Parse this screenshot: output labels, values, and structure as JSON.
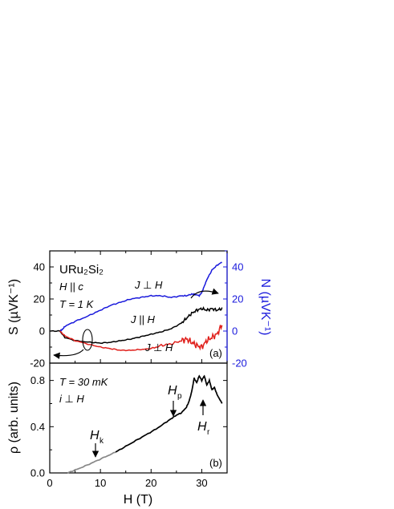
{
  "chart_data": [
    {
      "panel_label": "(a)",
      "type": "line",
      "ylabel": "S (µVK⁻¹)",
      "ylabel_right": "N (µVK⁻¹)",
      "xlim": [
        0,
        35
      ],
      "ylim": [
        -20,
        50
      ],
      "ylim_right": [
        -20,
        50
      ],
      "y_ticks": [
        -20,
        0,
        20,
        40
      ],
      "y_ticks_right": [
        -20,
        0,
        20,
        40
      ],
      "annotations": {
        "compound": "URu₂Si₂",
        "field_dir": "H || c",
        "temperature": "T = 1 K",
        "label_perp_top": "J ⊥ H",
        "label_par": "J || H",
        "label_perp_bottom": "J ⊥ H"
      },
      "series": [
        {
          "color": "#1a1adc",
          "axis": "right",
          "x": [
            2,
            2.5,
            3,
            5,
            8,
            10,
            12,
            14,
            16,
            18,
            20,
            22,
            24,
            26,
            27,
            28,
            28.5,
            29.5,
            30,
            30.5,
            31,
            32,
            33,
            34
          ],
          "y": [
            0,
            1,
            3,
            6,
            10,
            13,
            16,
            18,
            20,
            21,
            22,
            22,
            21,
            22,
            22,
            23,
            23,
            22,
            24,
            28,
            32,
            38,
            41,
            43
          ]
        },
        {
          "color": "#000000",
          "axis": "left",
          "x": [
            0,
            2,
            3,
            5,
            8,
            10,
            12,
            14,
            16,
            18,
            20,
            22,
            24,
            26,
            27,
            28,
            29,
            30,
            31,
            32,
            33,
            34
          ],
          "y": [
            0,
            0,
            -4,
            -6,
            -7,
            -7.5,
            -7,
            -6,
            -5,
            -3.5,
            -2,
            -0.5,
            1.5,
            5,
            8,
            11,
            13,
            14,
            13,
            14,
            13,
            14
          ]
        },
        {
          "color": "#e0201c",
          "axis": "left",
          "x": [
            2,
            3,
            5,
            8,
            10,
            12,
            14,
            16,
            18,
            20,
            22,
            24,
            26,
            27,
            28,
            29,
            30,
            31,
            32,
            33,
            34
          ],
          "y": [
            0,
            -3,
            -6,
            -8.5,
            -10,
            -11,
            -12,
            -12,
            -11.5,
            -11,
            -9,
            -8,
            -6,
            -5,
            -7,
            -9,
            -10,
            -6,
            -4,
            -2,
            4
          ]
        }
      ]
    },
    {
      "panel_label": "(b)",
      "type": "line",
      "xlabel": "H (T)",
      "ylabel": "ρ (arb. units)",
      "xlim": [
        0,
        35
      ],
      "ylim": [
        0,
        0.95
      ],
      "x_ticks": [
        0,
        10,
        20,
        30
      ],
      "y_ticks": [
        0.0,
        0.4,
        0.8
      ],
      "annotations": {
        "temperature": "T = 30 mK",
        "current_dir": "i ⊥ H",
        "marker_k": "H",
        "marker_k_sub": "k",
        "marker_p": "H",
        "marker_p_sub": "p",
        "marker_r": "H",
        "marker_r_sub": "r"
      },
      "markers": [
        {
          "name": "Hk",
          "x": 9
        },
        {
          "name": "Hp",
          "x": 24
        },
        {
          "name": "Hr",
          "x": 30
        }
      ],
      "series": [
        {
          "color": "#888888",
          "x": [
            3.5,
            5,
            7,
            9,
            11,
            13
          ],
          "y": [
            0.0,
            0.025,
            0.06,
            0.1,
            0.14,
            0.18
          ]
        },
        {
          "color": "#000000",
          "x": [
            13,
            15,
            17,
            19,
            21,
            23,
            24,
            25,
            26,
            27,
            27.5,
            28,
            28.5,
            29,
            29.5,
            30,
            30.5,
            31,
            31.5,
            32,
            32.5,
            33,
            34
          ],
          "y": [
            0.18,
            0.23,
            0.28,
            0.33,
            0.38,
            0.44,
            0.47,
            0.5,
            0.52,
            0.57,
            0.62,
            0.7,
            0.82,
            0.78,
            0.84,
            0.8,
            0.84,
            0.76,
            0.8,
            0.72,
            0.74,
            0.68,
            0.6
          ]
        }
      ]
    }
  ]
}
